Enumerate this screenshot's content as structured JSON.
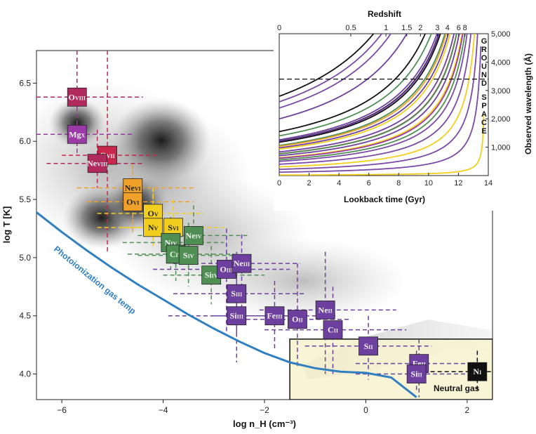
{
  "chart_data": [
    {
      "type": "scatter",
      "title": "",
      "xlabel": "log n_H (cm⁻³)",
      "ylabel": "log T [K]",
      "xlim": [
        -6.5,
        2.5
      ],
      "ylim": [
        3.78,
        6.78
      ],
      "xticks": [
        -6,
        -4,
        -2,
        0,
        2
      ],
      "yticks": [
        4.0,
        4.5,
        5.0,
        5.5,
        6.0,
        6.5
      ],
      "xtick_labels": [
        "−6",
        "−4",
        "−2",
        "0",
        "2"
      ],
      "ytick_labels": [
        "4.0",
        "4.5",
        "5.0",
        "5.5",
        "6.0",
        "6.5"
      ],
      "annotations": {
        "photoionization": "Photoionization gas temp",
        "neutral": "Neutral gas"
      },
      "photoionization_curve": {
        "x": [
          -6.5,
          -6.0,
          -5.5,
          -5.0,
          -4.5,
          -4.0,
          -3.5,
          -3.0,
          -2.5,
          -2.0,
          -1.5,
          -1.0,
          -0.5,
          0.0,
          0.5,
          1.0
        ],
        "y": [
          5.39,
          5.22,
          5.06,
          4.91,
          4.77,
          4.64,
          4.51,
          4.39,
          4.28,
          4.18,
          4.1,
          4.05,
          4.02,
          4.01,
          3.97,
          3.8
        ]
      },
      "neutral_region": {
        "x": [
          -1.5,
          2.5
        ],
        "y": [
          3.78,
          4.3
        ]
      },
      "ions": [
        {
          "elem": "O",
          "stage": "VIII",
          "x": -5.7,
          "y": 6.38,
          "x_range": [
            -6.5,
            -4.4
          ],
          "y_range": [
            5.9,
            6.78
          ],
          "color": "#b02a5e"
        },
        {
          "elem": "Mg",
          "stage": "X",
          "x": -5.7,
          "y": 6.06,
          "x_range": [
            -6.5,
            -4.6
          ],
          "y_range": [
            5.9,
            6.3
          ],
          "color": "#9a3aa6"
        },
        {
          "elem": "O",
          "stage": "VII",
          "x": -5.1,
          "y": 5.88,
          "x_range": [
            -6.0,
            -4.1
          ],
          "y_range": [
            5.05,
            6.78
          ],
          "color": "#c8264a"
        },
        {
          "elem": "Ne",
          "stage": "VIII",
          "x": -5.3,
          "y": 5.81,
          "x_range": [
            -6.3,
            -4.4
          ],
          "y_range": [
            5.6,
            6.1
          ],
          "color": "#b02a5e"
        },
        {
          "elem": "Ne",
          "stage": "VI",
          "x": -4.6,
          "y": 5.6,
          "x_range": [
            -5.7,
            -3.4
          ],
          "y_range": [
            5.2,
            5.8
          ],
          "color": "#f0a12a"
        },
        {
          "elem": "O",
          "stage": "VI",
          "x": -4.6,
          "y": 5.48,
          "x_range": [
            -5.5,
            -3.4
          ],
          "y_range": [
            5.25,
            5.75
          ],
          "color": "#f0a12a"
        },
        {
          "elem": "O",
          "stage": "V",
          "x": -4.2,
          "y": 5.38,
          "x_range": [
            -5.3,
            -3.2
          ],
          "y_range": [
            5.1,
            5.6
          ],
          "color": "#f2cf1f"
        },
        {
          "elem": "N",
          "stage": "V",
          "x": -4.2,
          "y": 5.26,
          "x_range": [
            -5.3,
            -3.2
          ],
          "y_range": [
            5.1,
            5.55
          ],
          "color": "#f2cf1f"
        },
        {
          "elem": "S",
          "stage": "VI",
          "x": -3.8,
          "y": 5.26,
          "x_range": [
            -4.8,
            -2.8
          ],
          "y_range": [
            4.95,
            5.5
          ],
          "color": "#f2cf1f"
        },
        {
          "elem": "Ne",
          "stage": "IV",
          "x": -3.4,
          "y": 5.19,
          "x_range": [
            -4.5,
            -2.3
          ],
          "y_range": [
            4.95,
            5.45
          ],
          "color": "#4f8f54"
        },
        {
          "elem": "N",
          "stage": "IV",
          "x": -3.85,
          "y": 5.13,
          "x_range": [
            -4.8,
            -2.8
          ],
          "y_range": [
            4.9,
            5.35
          ],
          "color": "#4f8f54"
        },
        {
          "elem": "C",
          "stage": "IV",
          "x": -3.75,
          "y": 5.03,
          "x_range": [
            -4.7,
            -2.6
          ],
          "y_range": [
            4.8,
            5.25
          ],
          "color": "#4f8f54"
        },
        {
          "elem": "S",
          "stage": "IV",
          "x": -3.5,
          "y": 5.02,
          "x_range": [
            -4.5,
            -2.4
          ],
          "y_range": [
            4.75,
            5.3
          ],
          "color": "#4f8f54"
        },
        {
          "elem": "Si",
          "stage": "IV",
          "x": -3.05,
          "y": 4.85,
          "x_range": [
            -4.0,
            -2.0
          ],
          "y_range": [
            4.6,
            5.1
          ],
          "color": "#4f8f54"
        },
        {
          "elem": "O",
          "stage": "III",
          "x": -2.75,
          "y": 4.9,
          "x_range": [
            -4.2,
            -1.5
          ],
          "y_range": [
            4.35,
            5.25
          ],
          "color": "#6d3f9e"
        },
        {
          "elem": "Ne",
          "stage": "III",
          "x": -2.45,
          "y": 4.95,
          "x_range": [
            -3.8,
            -1.3
          ],
          "y_range": [
            4.45,
            5.2
          ],
          "color": "#6d3f9e"
        },
        {
          "elem": "S",
          "stage": "III",
          "x": -2.55,
          "y": 4.69,
          "x_range": [
            -3.8,
            -1.2
          ],
          "y_range": [
            4.35,
            5.05
          ],
          "color": "#6d3f9e"
        },
        {
          "elem": "Si",
          "stage": "III",
          "x": -2.55,
          "y": 4.5,
          "x_range": [
            -3.9,
            -1.2
          ],
          "y_range": [
            4.1,
            4.9
          ],
          "color": "#6d3f9e"
        },
        {
          "elem": "Fe",
          "stage": "III",
          "x": -1.8,
          "y": 4.5,
          "x_range": [
            -3.0,
            -0.6
          ],
          "y_range": [
            4.2,
            4.8
          ],
          "color": "#6d3f9e"
        },
        {
          "elem": "O",
          "stage": "II",
          "x": -1.35,
          "y": 4.47,
          "x_range": [
            -2.5,
            -0.3
          ],
          "y_range": [
            4.05,
            4.95
          ],
          "color": "#6d3f9e"
        },
        {
          "elem": "Ne",
          "stage": "II",
          "x": -0.8,
          "y": 4.55,
          "x_range": [
            -2.1,
            0.6
          ],
          "y_range": [
            4.0,
            5.05
          ],
          "color": "#6d3f9e"
        },
        {
          "elem": "C",
          "stage": "II",
          "x": -0.65,
          "y": 4.38,
          "x_range": [
            -2.0,
            0.8
          ],
          "y_range": [
            4.0,
            4.75
          ],
          "color": "#6d3f9e"
        },
        {
          "elem": "S",
          "stage": "II",
          "x": 0.05,
          "y": 4.24,
          "x_range": [
            -1.2,
            1.3
          ],
          "y_range": [
            3.95,
            4.5
          ],
          "color": "#6d3f9e"
        },
        {
          "elem": "Fe",
          "stage": "II",
          "x": 1.05,
          "y": 4.09,
          "x_range": [
            -0.2,
            2.3
          ],
          "y_range": [
            3.8,
            4.3
          ],
          "color": "#6d3f9e"
        },
        {
          "elem": "Si",
          "stage": "II",
          "x": 1.0,
          "y": 4.0,
          "x_range": [
            -0.2,
            2.3
          ],
          "y_range": [
            3.85,
            4.2
          ],
          "color": "#6d3f9e"
        },
        {
          "elem": "N",
          "stage": "I",
          "x": 2.2,
          "y": 4.02,
          "x_range": [
            1.0,
            2.5
          ],
          "y_range": [
            3.85,
            4.2
          ],
          "color": "#111111"
        }
      ]
    },
    {
      "type": "line",
      "title": "",
      "xlabel": "Lookback time (Gyr)",
      "ylabel": "Observed wavelength (Å)",
      "top_axis_label": "Redshift",
      "xlim": [
        0,
        14
      ],
      "ylim": [
        0,
        5000
      ],
      "xticks": [
        0,
        2,
        4,
        6,
        8,
        10,
        12,
        14
      ],
      "yticks": [
        1000,
        2000,
        3000,
        4000,
        5000
      ],
      "ytick_labels": [
        "1,000",
        "2,000",
        "3,000",
        "4,000",
        "5,000"
      ],
      "top_ticks": [
        "0",
        "0.5",
        "1",
        "1.5",
        "2",
        "3",
        "4",
        "6",
        "8"
      ],
      "top_tick_z": [
        0,
        0.5,
        1,
        1.5,
        2,
        3,
        4,
        6,
        8
      ],
      "ground_space_boundary": 3400,
      "ground_label": "GROUND",
      "space_label": "SPACE",
      "rest_wavelength_lines": [
        {
          "rest": 2796,
          "color": "#111111"
        },
        {
          "rest": 2600,
          "color": "#7a4aa6"
        },
        {
          "rest": 2383,
          "color": "#7a4aa6"
        },
        {
          "rest": 2000,
          "color": "#6d3f9e"
        },
        {
          "rest": 1550,
          "color": "#111111"
        },
        {
          "rest": 1400,
          "color": "#4f8f54"
        },
        {
          "rest": 1260,
          "color": "#6d3f9e"
        },
        {
          "rest": 1215,
          "color": "#111111"
        },
        {
          "rest": 1206,
          "color": "#6d3f9e"
        },
        {
          "rest": 1175,
          "color": "#111111"
        },
        {
          "rest": 1063,
          "color": "#4f8f54"
        },
        {
          "rest": 1032,
          "color": "#f0a12a"
        },
        {
          "rest": 977,
          "color": "#6d3f9e"
        },
        {
          "rest": 933,
          "color": "#f2cf1f"
        },
        {
          "rest": 834,
          "color": "#6d3f9e"
        },
        {
          "rest": 770,
          "color": "#b02a5e"
        },
        {
          "rest": 765,
          "color": "#4f8f54"
        },
        {
          "rest": 702,
          "color": "#6d3f9e"
        },
        {
          "rest": 630,
          "color": "#f2cf1f"
        },
        {
          "rest": 610,
          "color": "#9a3aa6"
        },
        {
          "rest": 555,
          "color": "#4f8f54"
        },
        {
          "rest": 500,
          "color": "#7a4aa6"
        },
        {
          "rest": 400,
          "color": "#7a4aa6"
        },
        {
          "rest": 305,
          "color": "#f2cf1f"
        },
        {
          "rest": 220,
          "color": "#7a4aa6"
        },
        {
          "rest": 120,
          "color": "#7a4aa6"
        },
        {
          "rest": 20,
          "color": "#f2cf1f"
        }
      ]
    }
  ]
}
